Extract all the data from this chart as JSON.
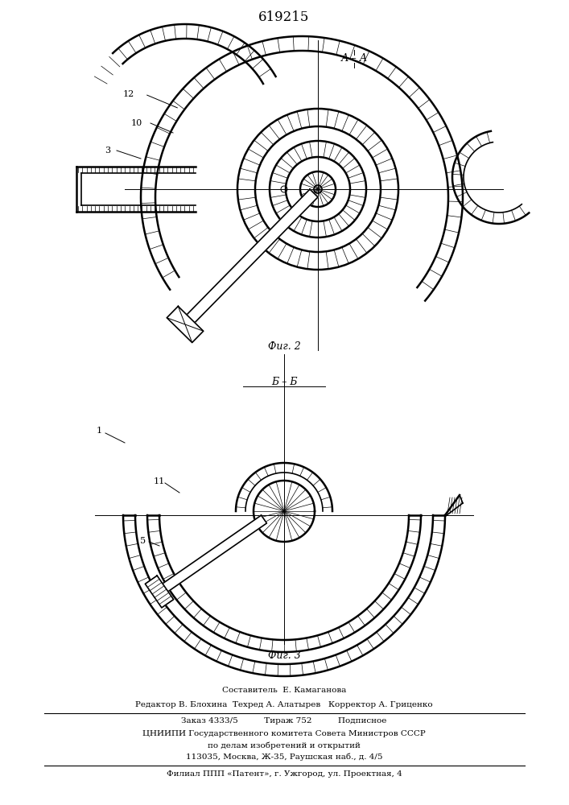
{
  "patent_number": "619215",
  "fig2_label": "А – А",
  "fig2_caption": "Фиг. 2",
  "fig3_label": "Б – Б",
  "fig3_caption": "Фиг. 3",
  "label_3": "3",
  "label_10": "10",
  "label_12": "12",
  "label_1": "1",
  "label_5": "5",
  "label_11": "11",
  "line_color": "#000000",
  "bg_color": "#ffffff",
  "footer_line1": "Составитель  Е. Камаганова",
  "footer_line2": "Редактор В. Блохина  Техред А. Алатырев   Корректор А. Гриценко",
  "footer_line3": "Заказ 4333/5          Тираж 752          Подписное",
  "footer_line4": "ЦНИИПИ Государственного комитета Совета Министров СССР",
  "footer_line5": "по делам изобретений и открытий",
  "footer_line6": "113035, Москва, Ж-35, Раушская наб., д. 4/5",
  "footer_line7": "Филиал ППП «Патент», г. Ужгород, ул. Проектная, 4"
}
